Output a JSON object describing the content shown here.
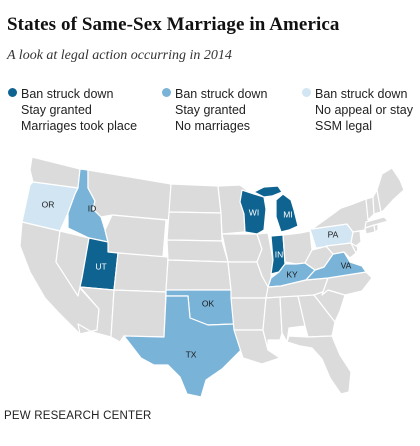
{
  "title": "States of Same-Sex Marriage in America",
  "subtitle": "A look at legal action occurring in 2014",
  "legend": [
    {
      "lines": [
        "Ban struck down",
        "Stay granted",
        "Marriages took place"
      ],
      "color": "#0f6391"
    },
    {
      "lines": [
        "Ban struck down",
        "Stay granted",
        "No marriages"
      ],
      "color": "#7ab3d8"
    },
    {
      "lines": [
        "Ban struck down",
        "No appeal or stay",
        "SSM legal"
      ],
      "color": "#d2e5f3"
    }
  ],
  "colors": {
    "default_state": "#dbdbdb",
    "dark": "#0f6391",
    "medium": "#7ab3d8",
    "light": "#d2e5f3"
  },
  "states": {
    "UT": {
      "label": "UT",
      "category": "dark"
    },
    "WI": {
      "label": "WI",
      "category": "dark"
    },
    "MI": {
      "label": "MI",
      "category": "dark"
    },
    "IN": {
      "label": "IN",
      "category": "dark"
    },
    "ID": {
      "label": "ID",
      "category": "medium"
    },
    "OK": {
      "label": "OK",
      "category": "medium"
    },
    "TX": {
      "label": "TX",
      "category": "medium"
    },
    "KY": {
      "label": "KY",
      "category": "medium"
    },
    "VA": {
      "label": "VA",
      "category": "medium"
    },
    "OR": {
      "label": "OR",
      "category": "light"
    },
    "PA": {
      "label": "PA",
      "category": "light"
    }
  },
  "source": "PEW RESEARCH CENTER"
}
